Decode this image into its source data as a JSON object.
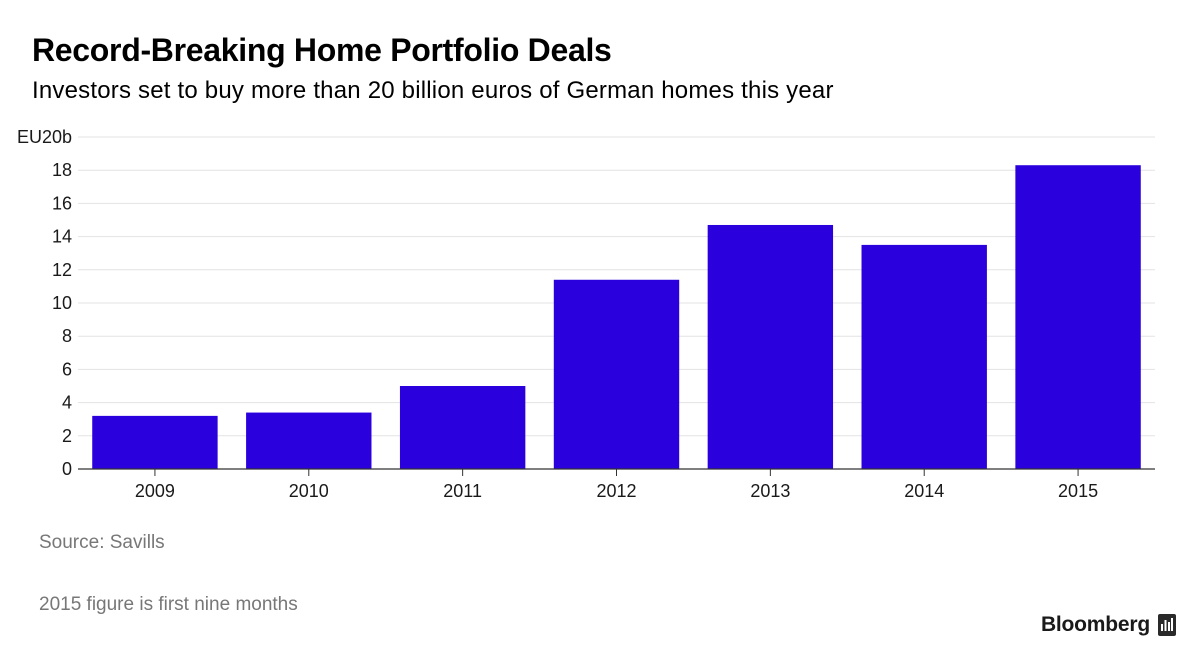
{
  "header": {
    "title": "Record-Breaking Home Portfolio Deals",
    "subtitle": "Investors set to buy more than 20 billion euros of German homes this year"
  },
  "chart_data": {
    "type": "bar",
    "categories": [
      "2009",
      "2010",
      "2011",
      "2012",
      "2013",
      "2014",
      "2015"
    ],
    "values": [
      3.2,
      3.4,
      5.0,
      11.4,
      14.7,
      13.5,
      18.3
    ],
    "ylim": [
      0,
      20
    ],
    "yticks": [
      0,
      2,
      4,
      6,
      8,
      10,
      12,
      14,
      16,
      18,
      20
    ],
    "ytick_labels": [
      "0",
      "2",
      "4",
      "6",
      "8",
      "10",
      "12",
      "14",
      "16",
      "18",
      "EU20b"
    ],
    "bar_color": "#2a00dc",
    "grid": true,
    "title": "",
    "xlabel": "",
    "ylabel": ""
  },
  "footer": {
    "source": "Source: Savills",
    "note": "2015 figure is first nine months",
    "brand": "Bloomberg",
    "brand_icon": "bloomberg-terminal-icon"
  },
  "colors": {
    "bar": "#2a00dc",
    "gridline": "#e3e3e3",
    "axis": "#333333",
    "note_text": "#777777"
  }
}
